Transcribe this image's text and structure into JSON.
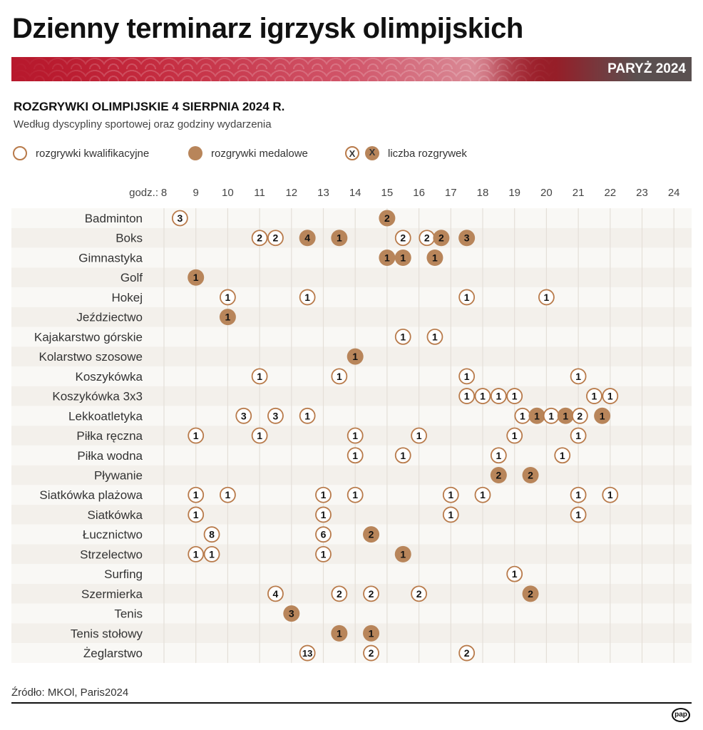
{
  "header": {
    "title": "Dzienny terminarz igrzysk olimpijskich",
    "badge": "PARYŻ 2024"
  },
  "subtitle": "ROZGRYWKI OLIMPIJSKIE 4 SIERPNIA 2024 R.",
  "description": "Według dyscypliny sportowej oraz godziny wydarzenia",
  "legend": {
    "qualifying": "rozgrywki kwalifikacyjne",
    "medal": "rozgrywki medalowe",
    "count_symbol": "X",
    "count": "liczba rozgrywek"
  },
  "footer": {
    "source": "Źródło: MKOl, Paris2024",
    "logo": "pap"
  },
  "colors": {
    "medal": "#b8855a",
    "outline": "#b87a4a",
    "band_red": "#b8192d",
    "band_gray": "#4b4b4b"
  },
  "chart_data": {
    "type": "scatter",
    "x_prefix": "godz.:",
    "xlim": [
      8,
      24
    ],
    "x_ticks": [
      8,
      9,
      10,
      11,
      12,
      13,
      14,
      15,
      16,
      17,
      18,
      19,
      20,
      21,
      22,
      23,
      24
    ],
    "grid": true,
    "rows": [
      {
        "sport": "Badminton",
        "events": [
          {
            "h": 8.5,
            "n": 3,
            "medal": false
          },
          {
            "h": 15,
            "n": 2,
            "medal": true
          }
        ]
      },
      {
        "sport": "Boks",
        "events": [
          {
            "h": 11,
            "n": 2,
            "medal": false
          },
          {
            "h": 11.5,
            "n": 2,
            "medal": false
          },
          {
            "h": 12.5,
            "n": 4,
            "medal": true
          },
          {
            "h": 13.5,
            "n": 1,
            "medal": true
          },
          {
            "h": 15.5,
            "n": 2,
            "medal": false
          },
          {
            "h": 16.25,
            "n": 2,
            "medal": false
          },
          {
            "h": 16.7,
            "n": 2,
            "medal": true
          },
          {
            "h": 17.5,
            "n": 3,
            "medal": true
          }
        ]
      },
      {
        "sport": "Gimnastyka",
        "events": [
          {
            "h": 15,
            "n": 1,
            "medal": true
          },
          {
            "h": 15.5,
            "n": 1,
            "medal": true
          },
          {
            "h": 16.5,
            "n": 1,
            "medal": true
          }
        ]
      },
      {
        "sport": "Golf",
        "events": [
          {
            "h": 9,
            "n": 1,
            "medal": true
          }
        ]
      },
      {
        "sport": "Hokej",
        "events": [
          {
            "h": 10,
            "n": 1,
            "medal": false
          },
          {
            "h": 12.5,
            "n": 1,
            "medal": false
          },
          {
            "h": 17.5,
            "n": 1,
            "medal": false
          },
          {
            "h": 20,
            "n": 1,
            "medal": false
          }
        ]
      },
      {
        "sport": "Jeździectwo",
        "events": [
          {
            "h": 10,
            "n": 1,
            "medal": true
          }
        ]
      },
      {
        "sport": "Kajakarstwo górskie",
        "events": [
          {
            "h": 15.5,
            "n": 1,
            "medal": false
          },
          {
            "h": 16.5,
            "n": 1,
            "medal": false
          }
        ]
      },
      {
        "sport": "Kolarstwo szosowe",
        "events": [
          {
            "h": 14,
            "n": 1,
            "medal": true
          }
        ]
      },
      {
        "sport": "Koszykówka",
        "events": [
          {
            "h": 11,
            "n": 1,
            "medal": false
          },
          {
            "h": 13.5,
            "n": 1,
            "medal": false
          },
          {
            "h": 17.5,
            "n": 1,
            "medal": false
          },
          {
            "h": 21,
            "n": 1,
            "medal": false
          }
        ]
      },
      {
        "sport": "Koszykówka 3x3",
        "events": [
          {
            "h": 17.5,
            "n": 1,
            "medal": false
          },
          {
            "h": 18,
            "n": 1,
            "medal": false
          },
          {
            "h": 18.5,
            "n": 1,
            "medal": false
          },
          {
            "h": 19,
            "n": 1,
            "medal": false
          },
          {
            "h": 21.5,
            "n": 1,
            "medal": false
          },
          {
            "h": 22,
            "n": 1,
            "medal": false
          }
        ]
      },
      {
        "sport": "Lekkoatletyka",
        "events": [
          {
            "h": 10.5,
            "n": 3,
            "medal": false
          },
          {
            "h": 11.5,
            "n": 3,
            "medal": false
          },
          {
            "h": 12.5,
            "n": 1,
            "medal": false
          },
          {
            "h": 19.25,
            "n": 1,
            "medal": false
          },
          {
            "h": 19.7,
            "n": 1,
            "medal": true
          },
          {
            "h": 20.15,
            "n": 1,
            "medal": false
          },
          {
            "h": 20.6,
            "n": 1,
            "medal": true
          },
          {
            "h": 21.05,
            "n": 2,
            "medal": false
          },
          {
            "h": 21.75,
            "n": 1,
            "medal": true
          }
        ]
      },
      {
        "sport": "Piłka ręczna",
        "events": [
          {
            "h": 9,
            "n": 1,
            "medal": false
          },
          {
            "h": 11,
            "n": 1,
            "medal": false
          },
          {
            "h": 14,
            "n": 1,
            "medal": false
          },
          {
            "h": 16,
            "n": 1,
            "medal": false
          },
          {
            "h": 19,
            "n": 1,
            "medal": false
          },
          {
            "h": 21,
            "n": 1,
            "medal": false
          }
        ]
      },
      {
        "sport": "Piłka wodna",
        "events": [
          {
            "h": 14,
            "n": 1,
            "medal": false
          },
          {
            "h": 15.5,
            "n": 1,
            "medal": false
          },
          {
            "h": 18.5,
            "n": 1,
            "medal": false
          },
          {
            "h": 20.5,
            "n": 1,
            "medal": false
          }
        ]
      },
      {
        "sport": "Pływanie",
        "events": [
          {
            "h": 18.5,
            "n": 2,
            "medal": true
          },
          {
            "h": 19.5,
            "n": 2,
            "medal": true
          }
        ]
      },
      {
        "sport": "Siatkówka plażowa",
        "events": [
          {
            "h": 9,
            "n": 1,
            "medal": false
          },
          {
            "h": 10,
            "n": 1,
            "medal": false
          },
          {
            "h": 13,
            "n": 1,
            "medal": false
          },
          {
            "h": 14,
            "n": 1,
            "medal": false
          },
          {
            "h": 17,
            "n": 1,
            "medal": false
          },
          {
            "h": 18,
            "n": 1,
            "medal": false
          },
          {
            "h": 21,
            "n": 1,
            "medal": false
          },
          {
            "h": 22,
            "n": 1,
            "medal": false
          }
        ]
      },
      {
        "sport": "Siatkówka",
        "events": [
          {
            "h": 9,
            "n": 1,
            "medal": false
          },
          {
            "h": 13,
            "n": 1,
            "medal": false
          },
          {
            "h": 17,
            "n": 1,
            "medal": false
          },
          {
            "h": 21,
            "n": 1,
            "medal": false
          }
        ]
      },
      {
        "sport": "Łucznictwo",
        "events": [
          {
            "h": 9.5,
            "n": 8,
            "medal": false
          },
          {
            "h": 13,
            "n": 6,
            "medal": false
          },
          {
            "h": 14.5,
            "n": 2,
            "medal": true
          }
        ]
      },
      {
        "sport": "Strzelectwo",
        "events": [
          {
            "h": 9,
            "n": 1,
            "medal": false
          },
          {
            "h": 9.5,
            "n": 1,
            "medal": false
          },
          {
            "h": 13,
            "n": 1,
            "medal": false
          },
          {
            "h": 15.5,
            "n": 1,
            "medal": true
          }
        ]
      },
      {
        "sport": "Surfing",
        "events": [
          {
            "h": 19,
            "n": 1,
            "medal": false
          }
        ]
      },
      {
        "sport": "Szermierka",
        "events": [
          {
            "h": 11.5,
            "n": 4,
            "medal": false
          },
          {
            "h": 13.5,
            "n": 2,
            "medal": false
          },
          {
            "h": 14.5,
            "n": 2,
            "medal": false
          },
          {
            "h": 16,
            "n": 2,
            "medal": false
          },
          {
            "h": 19.5,
            "n": 2,
            "medal": true
          }
        ]
      },
      {
        "sport": "Tenis",
        "events": [
          {
            "h": 12,
            "n": 3,
            "medal": true
          }
        ]
      },
      {
        "sport": "Tenis stołowy",
        "events": [
          {
            "h": 13.5,
            "n": 1,
            "medal": true
          },
          {
            "h": 14.5,
            "n": 1,
            "medal": true
          }
        ]
      },
      {
        "sport": "Żeglarstwo",
        "events": [
          {
            "h": 12.5,
            "n": 13,
            "medal": false
          },
          {
            "h": 14.5,
            "n": 2,
            "medal": false
          },
          {
            "h": 17.5,
            "n": 2,
            "medal": false
          }
        ]
      }
    ]
  }
}
